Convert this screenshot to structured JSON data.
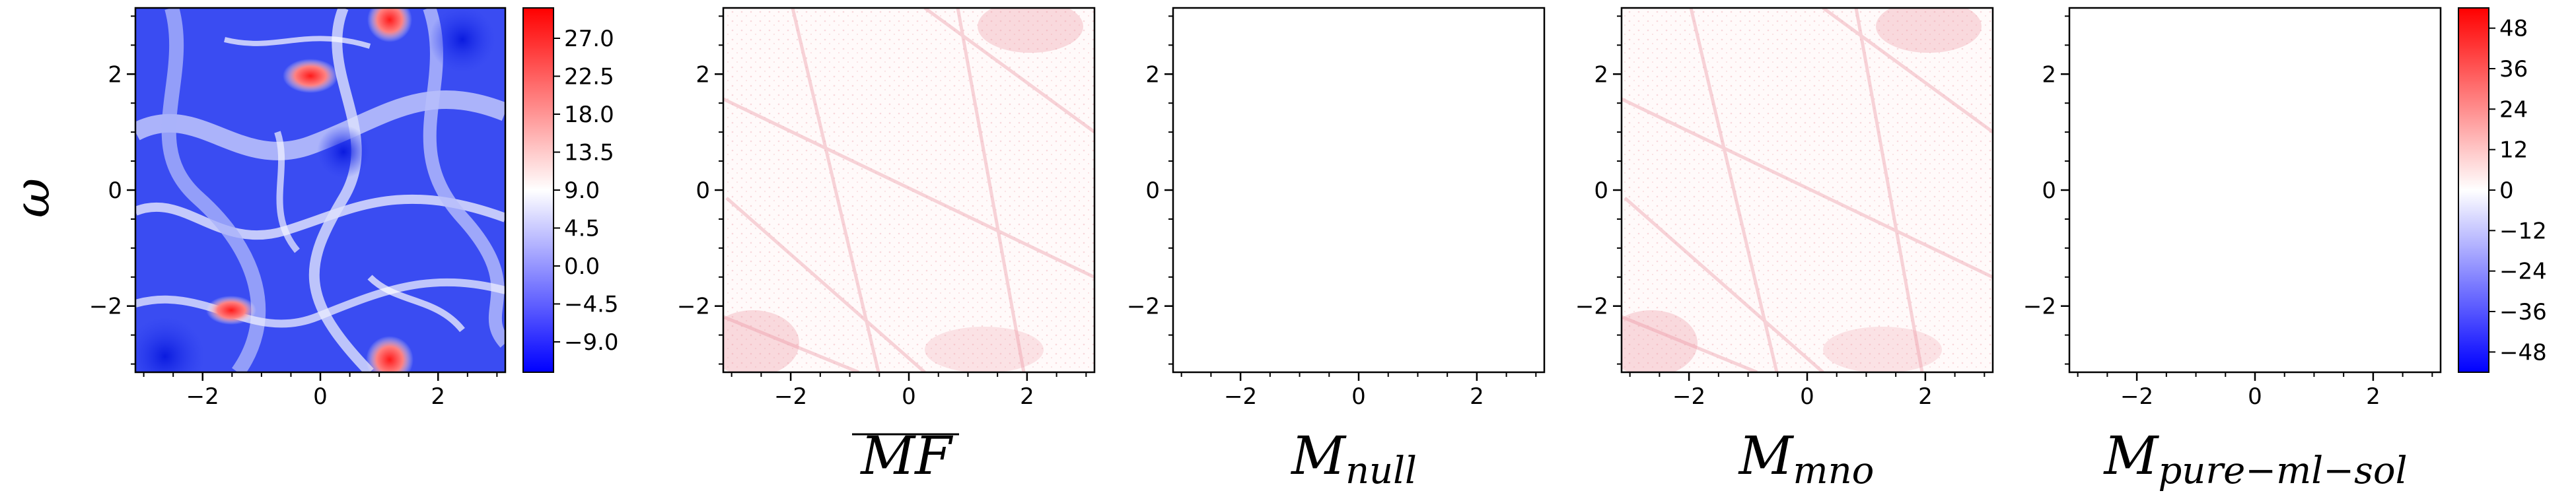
{
  "chart_data": [
    {
      "type": "heatmap",
      "ylabel": "ω",
      "xlabel": "",
      "xlim": [
        -3.14159,
        3.14159
      ],
      "ylim": [
        -3.14159,
        3.14159
      ],
      "xticks": [
        -2,
        0,
        2
      ],
      "yticks": [
        -2,
        0,
        2
      ],
      "xtick_labels": [
        "−2",
        "0",
        "2"
      ],
      "ytick_labels": [
        "−2",
        "0",
        "2"
      ],
      "colormap": "bwr",
      "colorbar": {
        "ticks": [
          -9.0,
          -4.5,
          0.0,
          4.5,
          9.0,
          13.5,
          18.0,
          22.5,
          27.0
        ],
        "tick_labels": [
          "−9.0",
          "−4.5",
          "0.0",
          "4.5",
          "9.0",
          "13.5",
          "18.0",
          "22.5",
          "27.0"
        ]
      },
      "description_values": "vorticity field, predominantly negative (blue) with a few positive (red) vortices"
    },
    {
      "type": "heatmap",
      "xlabel_main": "MF",
      "xlabel_sub": "",
      "xlabel_overline": true,
      "xlim": [
        -3.14159,
        3.14159
      ],
      "ylim": [
        -3.14159,
        3.14159
      ],
      "xticks": [
        -2,
        0,
        2
      ],
      "yticks": [
        -2,
        0,
        2
      ],
      "xtick_labels": [
        "−2",
        "0",
        "2"
      ],
      "ytick_labels": [
        "−2",
        "0",
        "2"
      ],
      "colormap": "bwr",
      "content": "faint-red-texture"
    },
    {
      "type": "heatmap",
      "xlabel_main": "M",
      "xlabel_sub": "null",
      "xlim": [
        -3.14159,
        3.14159
      ],
      "ylim": [
        -3.14159,
        3.14159
      ],
      "xticks": [
        -2,
        0,
        2
      ],
      "yticks": [
        -2,
        0,
        2
      ],
      "xtick_labels": [
        "−2",
        "0",
        "2"
      ],
      "ytick_labels": [
        "−2",
        "0",
        "2"
      ],
      "colormap": "bwr",
      "content": "blank"
    },
    {
      "type": "heatmap",
      "xlabel_main": "M",
      "xlabel_sub": "mno",
      "xlim": [
        -3.14159,
        3.14159
      ],
      "ylim": [
        -3.14159,
        3.14159
      ],
      "xticks": [
        -2,
        0,
        2
      ],
      "yticks": [
        -2,
        0,
        2
      ],
      "xtick_labels": [
        "−2",
        "0",
        "2"
      ],
      "ytick_labels": [
        "−2",
        "0",
        "2"
      ],
      "colormap": "bwr",
      "content": "faint-red-texture"
    },
    {
      "type": "heatmap",
      "xlabel_main": "M",
      "xlabel_sub": "pure−ml−sol",
      "xlim": [
        -3.14159,
        3.14159
      ],
      "ylim": [
        -3.14159,
        3.14159
      ],
      "xticks": [
        -2,
        0,
        2
      ],
      "yticks": [
        -2,
        0,
        2
      ],
      "xtick_labels": [
        "−2",
        "0",
        "2"
      ],
      "ytick_labels": [
        "−2",
        "0",
        "2"
      ],
      "colormap": "bwr",
      "content": "blank",
      "colorbar": {
        "ticks": [
          -48,
          -36,
          -24,
          -12,
          0,
          12,
          24,
          36,
          48
        ],
        "tick_labels": [
          "−48",
          "−36",
          "−24",
          "−12",
          "0",
          "12",
          "24",
          "36",
          "48"
        ]
      }
    }
  ]
}
